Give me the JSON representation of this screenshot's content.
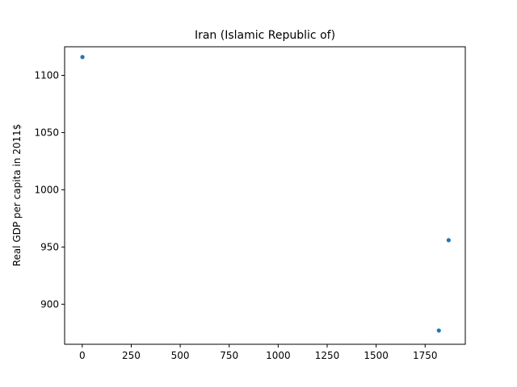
{
  "chart_data": {
    "type": "scatter",
    "title": "Iran (Islamic Republic of)",
    "xlabel": "",
    "ylabel": "Real GDP per capita in 2011$",
    "xlim": [
      -90,
      1955
    ],
    "ylim": [
      865,
      1125
    ],
    "xticks": [
      0,
      250,
      500,
      750,
      1000,
      1250,
      1500,
      1750
    ],
    "yticks": [
      900,
      950,
      1000,
      1050,
      1100
    ],
    "grid": false,
    "series": [
      {
        "color": "#1f77b4",
        "points": [
          {
            "x": 1,
            "y": 1116
          },
          {
            "x": 1820,
            "y": 877
          },
          {
            "x": 1870,
            "y": 956
          }
        ]
      }
    ]
  }
}
